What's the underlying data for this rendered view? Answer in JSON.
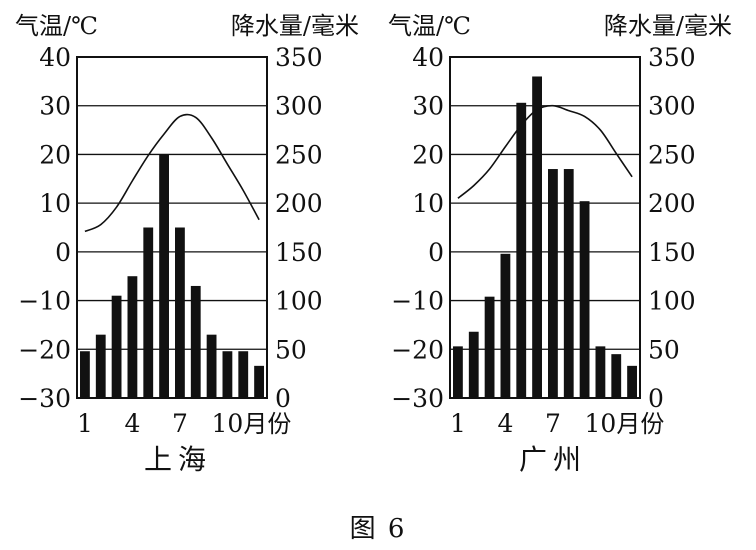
{
  "caption": "图 6",
  "axis_titles": {
    "left": "气温/℃",
    "right": "降水量/毫米"
  },
  "month_unit": "月份",
  "chart_data": [
    {
      "type": "bar+line",
      "title": "上海",
      "xlabel": "月份",
      "ylabel_left": "气温/℃",
      "ylabel_right": "降水量/毫米",
      "x": [
        1,
        2,
        3,
        4,
        5,
        6,
        7,
        8,
        9,
        10,
        11,
        12
      ],
      "x_tick_labels": [
        "1",
        "4",
        "7",
        "10"
      ],
      "temp_ylim": [
        -30,
        40
      ],
      "temp_ticks": [
        40,
        30,
        20,
        10,
        0,
        -10,
        -20,
        -30
      ],
      "precip_ylim": [
        0,
        350
      ],
      "precip_ticks": [
        350,
        300,
        250,
        200,
        150,
        100,
        50,
        0
      ],
      "grid": "horizontal",
      "series": [
        {
          "kind": "line",
          "axis": "temperature",
          "values": [
            4.2,
            5.6,
            9.2,
            14.6,
            19.8,
            24.2,
            27.8,
            27.6,
            23.4,
            18.0,
            12.6,
            6.6
          ]
        },
        {
          "kind": "bar",
          "axis": "precipitation",
          "values": [
            48,
            65,
            105,
            125,
            175,
            250,
            175,
            115,
            65,
            48,
            48,
            33
          ]
        }
      ]
    },
    {
      "type": "bar+line",
      "title": "广州",
      "xlabel": "月份",
      "ylabel_left": "气温/℃",
      "ylabel_right": "降水量/毫米",
      "x": [
        1,
        2,
        3,
        4,
        5,
        6,
        7,
        8,
        9,
        10,
        11,
        12
      ],
      "x_tick_labels": [
        "1",
        "4",
        "7",
        "10"
      ],
      "temp_ylim": [
        -30,
        40
      ],
      "temp_ticks": [
        40,
        30,
        20,
        10,
        0,
        -10,
        -20,
        -30
      ],
      "precip_ylim": [
        0,
        350
      ],
      "precip_ticks": [
        350,
        300,
        250,
        200,
        150,
        100,
        50,
        0
      ],
      "grid": "horizontal",
      "series": [
        {
          "kind": "line",
          "axis": "temperature",
          "values": [
            11.0,
            13.6,
            17.0,
            21.6,
            26.0,
            29.2,
            30.0,
            29.0,
            27.8,
            25.0,
            20.2,
            15.4
          ]
        },
        {
          "kind": "bar",
          "axis": "precipitation",
          "values": [
            53,
            68,
            104,
            148,
            303,
            330,
            235,
            235,
            202,
            53,
            45,
            33
          ]
        }
      ]
    }
  ]
}
